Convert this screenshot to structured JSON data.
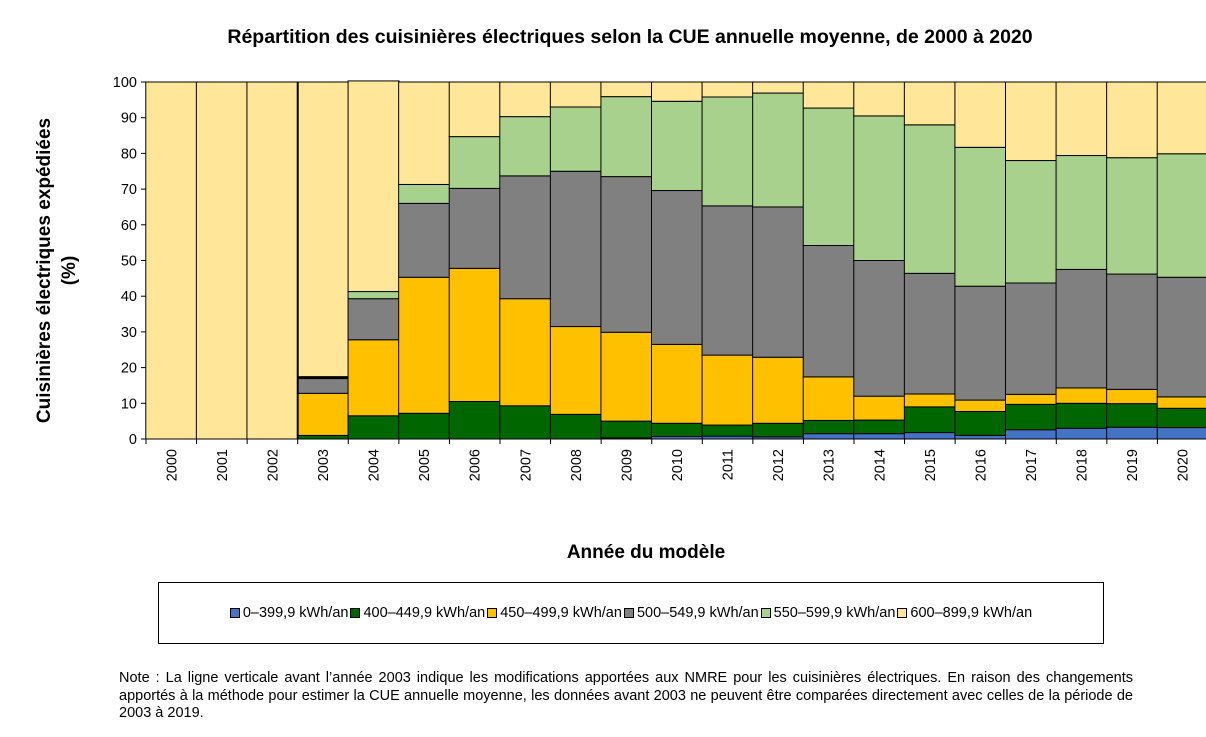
{
  "chart_data": {
    "type": "bar",
    "stacked": true,
    "title": "Répartition des cuisinières électriques selon la CUE annuelle moyenne, de 2000 à 2020",
    "xlabel": "Année du modèle",
    "ylabel": "Cuisinières électriques expédiées (%)",
    "ylabel_lines": [
      "Cuisinières électriques expédiées",
      "(%)"
    ],
    "ylim": [
      0,
      100
    ],
    "yticks": [
      0,
      10,
      20,
      30,
      40,
      50,
      60,
      70,
      80,
      90,
      100
    ],
    "grid": false,
    "legend_position": "bottom",
    "categories": [
      "2000",
      "2001",
      "2002",
      "2003",
      "2004",
      "2005",
      "2006",
      "2007",
      "2008",
      "2009",
      "2010",
      "2011",
      "2012",
      "2013",
      "2014",
      "2015",
      "2016",
      "2017",
      "2018",
      "2019",
      "2020"
    ],
    "series": [
      {
        "name": "0–399,9 kWh/an",
        "color": "#4472C4",
        "values": [
          0,
          0,
          0,
          0,
          0,
          0,
          0,
          0,
          0,
          0.3,
          0.7,
          0.8,
          0.6,
          1.5,
          1.5,
          1.8,
          1.0,
          2.6,
          3.0,
          3.3,
          3.2
        ]
      },
      {
        "name": "400–449,9 kWh/an",
        "color": "#006600",
        "values": [
          0,
          0,
          0,
          1.0,
          6.5,
          7.2,
          10.5,
          9.3,
          6.9,
          4.7,
          3.7,
          3.1,
          3.8,
          3.7,
          3.8,
          7.2,
          6.7,
          7.1,
          7.0,
          6.6,
          5.4
        ]
      },
      {
        "name": "450–499,9 kWh/an",
        "color": "#FFC000",
        "values": [
          0,
          0,
          0,
          11.8,
          21.3,
          38.1,
          37.3,
          30.0,
          24.6,
          24.9,
          22.1,
          19.6,
          18.5,
          12.2,
          6.7,
          3.6,
          3.2,
          2.8,
          4.3,
          4.0,
          3.2
        ]
      },
      {
        "name": "500–549,9 kWh/an",
        "color": "#808080",
        "values": [
          0,
          0,
          0,
          4.4,
          11.5,
          20.7,
          22.4,
          34.4,
          43.5,
          43.6,
          43.1,
          41.8,
          42.1,
          36.8,
          38.0,
          33.8,
          31.9,
          31.2,
          33.2,
          32.3,
          33.5
        ]
      },
      {
        "name": "550–599,9 kWh/an",
        "color": "#A9D18E",
        "values": [
          0,
          0,
          0,
          0,
          2.0,
          5.3,
          14.5,
          16.6,
          18.0,
          22.4,
          25.0,
          30.5,
          31.9,
          38.5,
          40.5,
          41.6,
          38.9,
          34.3,
          31.9,
          32.6,
          34.6
        ]
      },
      {
        "name": "600–899,9 kWh/an",
        "color": "#FFE699",
        "values": [
          100,
          100,
          100,
          82.8,
          59.0,
          28.7,
          15.3,
          9.7,
          7.0,
          4.1,
          5.4,
          4.2,
          3.1,
          7.3,
          9.5,
          12.0,
          18.3,
          22.0,
          20.6,
          21.2,
          20.1
        ]
      }
    ],
    "separators": [
      {
        "type": "line",
        "color": "#000000"
      },
      {
        "type": "line",
        "color": "#000000"
      }
    ],
    "annotations": [
      {
        "type": "vertical_line",
        "between": [
          "2002",
          "2003"
        ],
        "color": "#000000"
      }
    ]
  },
  "note": "Note : La ligne verticale avant l’année 2003 indique les modifications apportées aux NMRE pour les cuisinières électriques. En raison des changements apportés à la méthode pour estimer la CUE annuelle moyenne, les données avant 2003 ne peuvent être comparées directement avec celles de la période de 2003 à 2019."
}
